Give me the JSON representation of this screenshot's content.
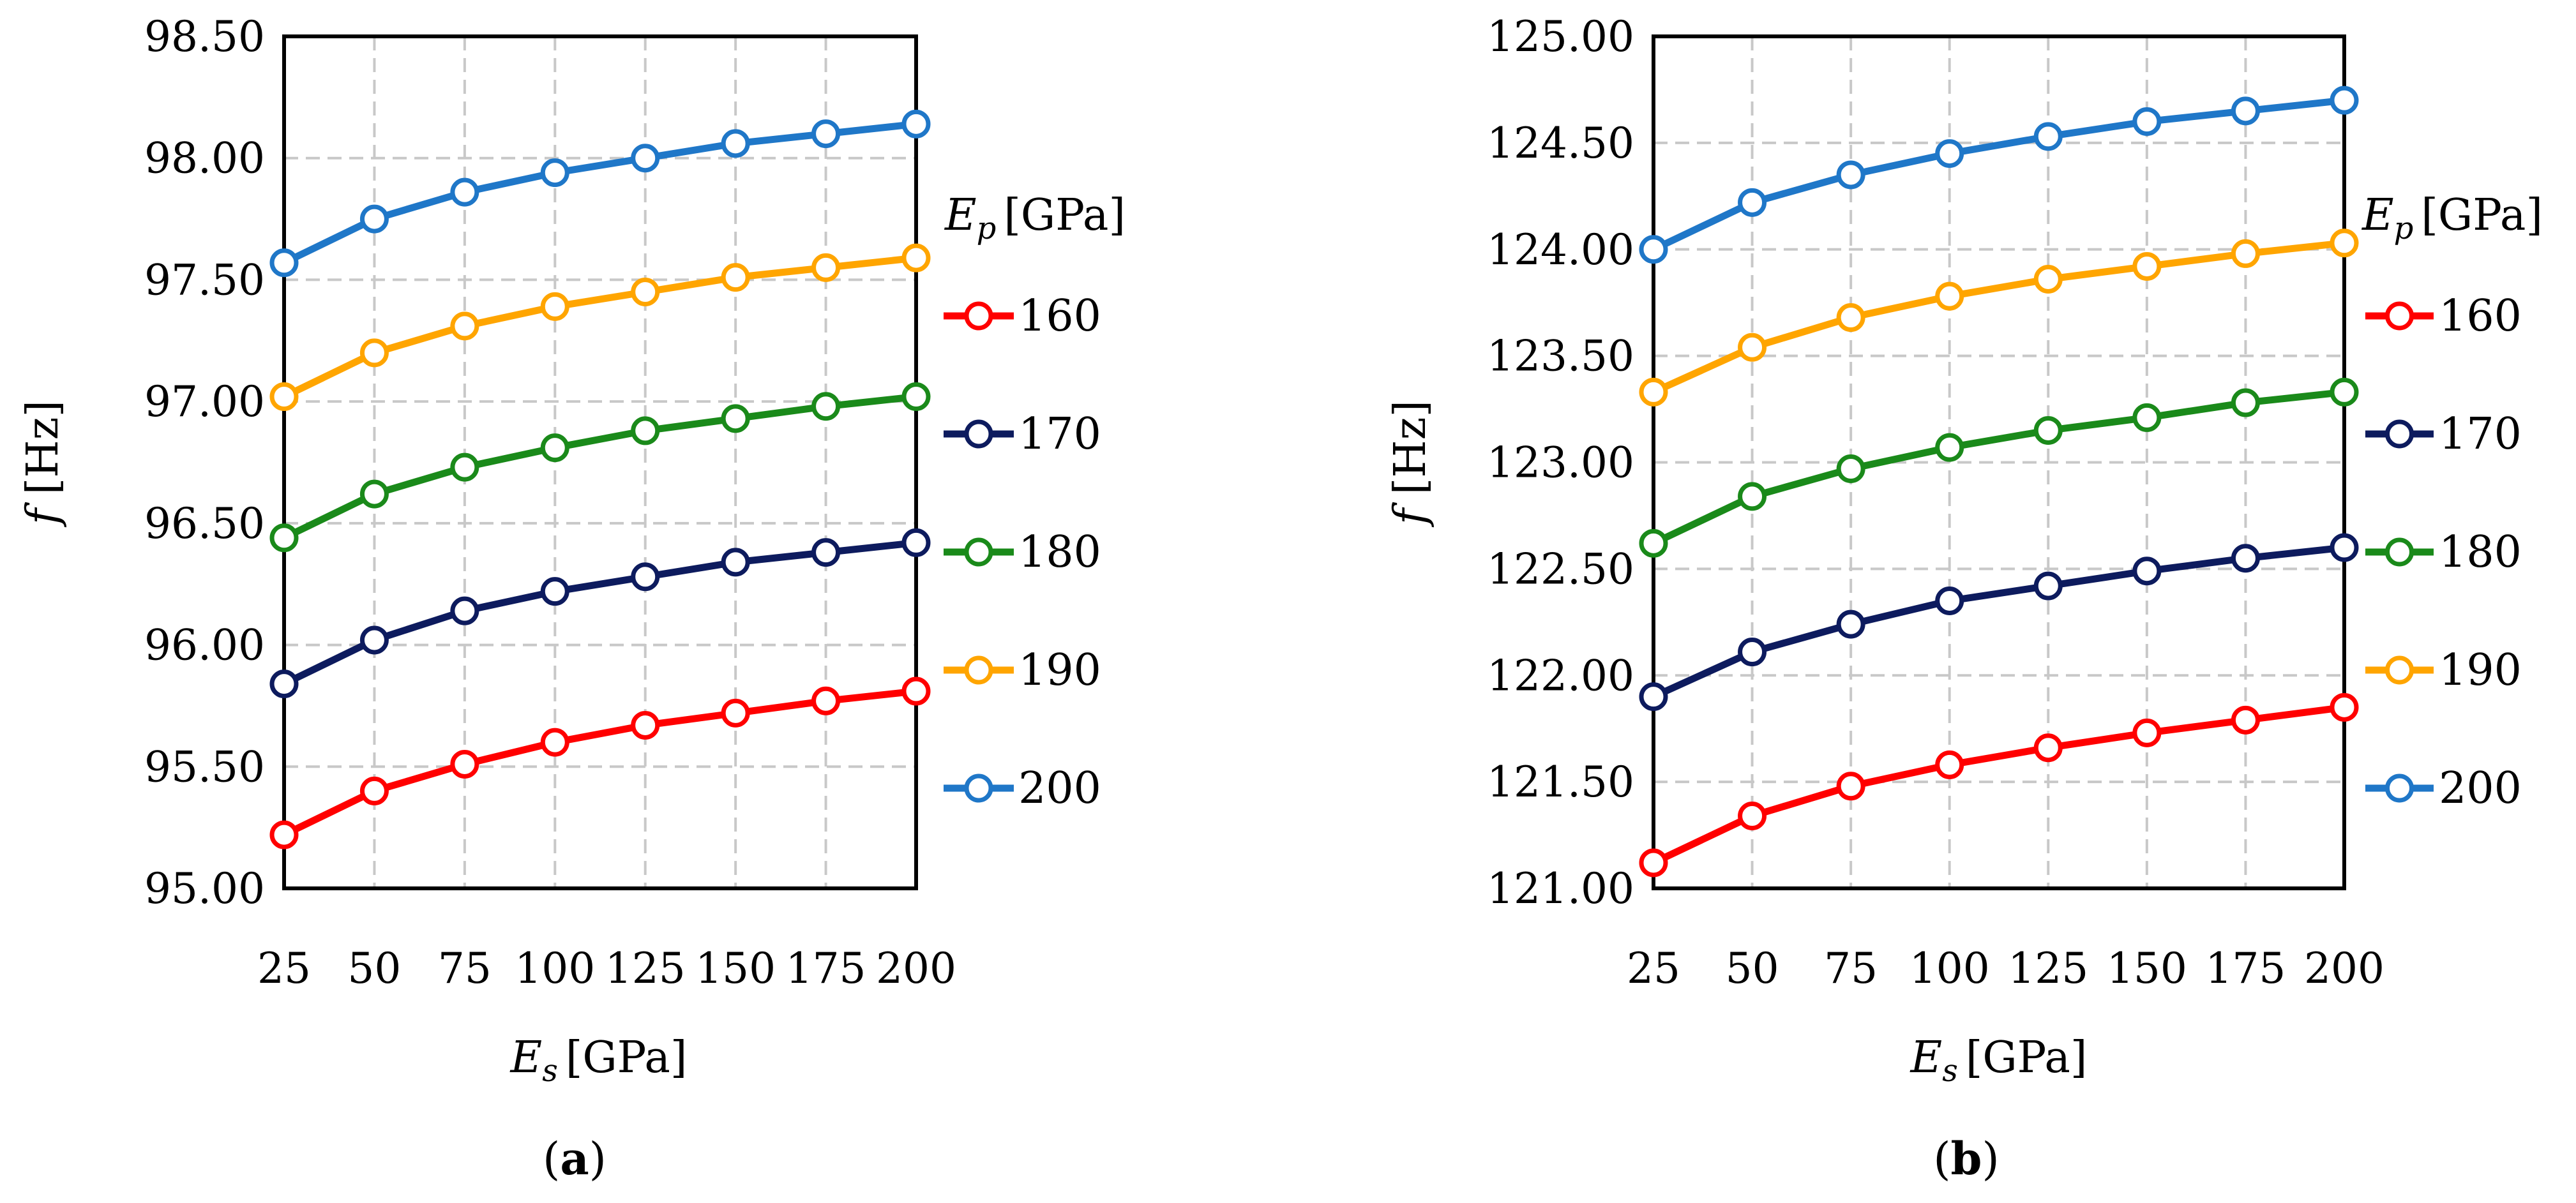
{
  "chart_data": [
    {
      "type": "line",
      "panel_label": "a",
      "xlabel": {
        "var": "E",
        "sub": "s",
        "unit": "[GPa]"
      },
      "ylabel": {
        "var": "f",
        "unit": "[Hz]"
      },
      "x": [
        25,
        50,
        75,
        100,
        125,
        150,
        175,
        200
      ],
      "x_tick_labels": [
        "25",
        "50",
        "75",
        "100",
        "125",
        "150",
        "175",
        "200"
      ],
      "ylim": [
        95.0,
        98.5
      ],
      "y_ticks": [
        95.0,
        95.5,
        96.0,
        96.5,
        97.0,
        97.5,
        98.0,
        98.5
      ],
      "y_tick_labels": [
        "95.00",
        "95.50",
        "96.00",
        "96.50",
        "97.00",
        "97.50",
        "98.00",
        "98.50"
      ],
      "grid": true,
      "legend": {
        "title_var": "E",
        "title_sub": "p",
        "title_unit": "[GPa]",
        "placement": "right"
      },
      "series": [
        {
          "name": "160",
          "color": "#ff0000",
          "values": [
            95.22,
            95.4,
            95.51,
            95.6,
            95.67,
            95.72,
            95.77,
            95.81
          ]
        },
        {
          "name": "170",
          "color": "#0d1b5e",
          "values": [
            95.84,
            96.02,
            96.14,
            96.22,
            96.28,
            96.34,
            96.38,
            96.42
          ]
        },
        {
          "name": "180",
          "color": "#1a8a1a",
          "values": [
            96.44,
            96.62,
            96.73,
            96.81,
            96.88,
            96.93,
            96.98,
            97.02
          ]
        },
        {
          "name": "190",
          "color": "#ffa500",
          "values": [
            97.02,
            97.2,
            97.31,
            97.39,
            97.45,
            97.51,
            97.55,
            97.59
          ]
        },
        {
          "name": "200",
          "color": "#1f77c8",
          "values": [
            97.57,
            97.75,
            97.86,
            97.94,
            98.0,
            98.06,
            98.1,
            98.14
          ]
        }
      ]
    },
    {
      "type": "line",
      "panel_label": "b",
      "xlabel": {
        "var": "E",
        "sub": "s",
        "unit": "[GPa]"
      },
      "ylabel": {
        "var": "f",
        "unit": "[Hz]"
      },
      "x": [
        25,
        50,
        75,
        100,
        125,
        150,
        175,
        200
      ],
      "x_tick_labels": [
        "25",
        "50",
        "75",
        "100",
        "125",
        "150",
        "175",
        "200"
      ],
      "ylim": [
        121.0,
        125.0
      ],
      "y_ticks": [
        121.0,
        121.5,
        122.0,
        122.5,
        123.0,
        123.5,
        124.0,
        124.5,
        125.0
      ],
      "y_tick_labels": [
        "121.00",
        "121.50",
        "122.00",
        "122.50",
        "123.00",
        "123.50",
        "124.00",
        "124.50",
        "125.00"
      ],
      "grid": true,
      "legend": {
        "title_var": "E",
        "title_sub": "p",
        "title_unit": "[GPa]",
        "placement": "right"
      },
      "series": [
        {
          "name": "160",
          "color": "#ff0000",
          "values": [
            121.12,
            121.34,
            121.48,
            121.58,
            121.66,
            121.73,
            121.79,
            121.85
          ]
        },
        {
          "name": "170",
          "color": "#0d1b5e",
          "values": [
            121.9,
            122.11,
            122.24,
            122.35,
            122.42,
            122.49,
            122.55,
            122.6
          ]
        },
        {
          "name": "180",
          "color": "#1a8a1a",
          "values": [
            122.62,
            122.84,
            122.97,
            123.07,
            123.15,
            123.21,
            123.28,
            123.33
          ]
        },
        {
          "name": "190",
          "color": "#ffa500",
          "values": [
            123.33,
            123.54,
            123.68,
            123.78,
            123.86,
            123.92,
            123.98,
            124.03
          ]
        },
        {
          "name": "200",
          "color": "#1f77c8",
          "values": [
            124.0,
            124.22,
            124.35,
            124.45,
            124.53,
            124.6,
            124.65,
            124.7
          ]
        }
      ]
    }
  ]
}
